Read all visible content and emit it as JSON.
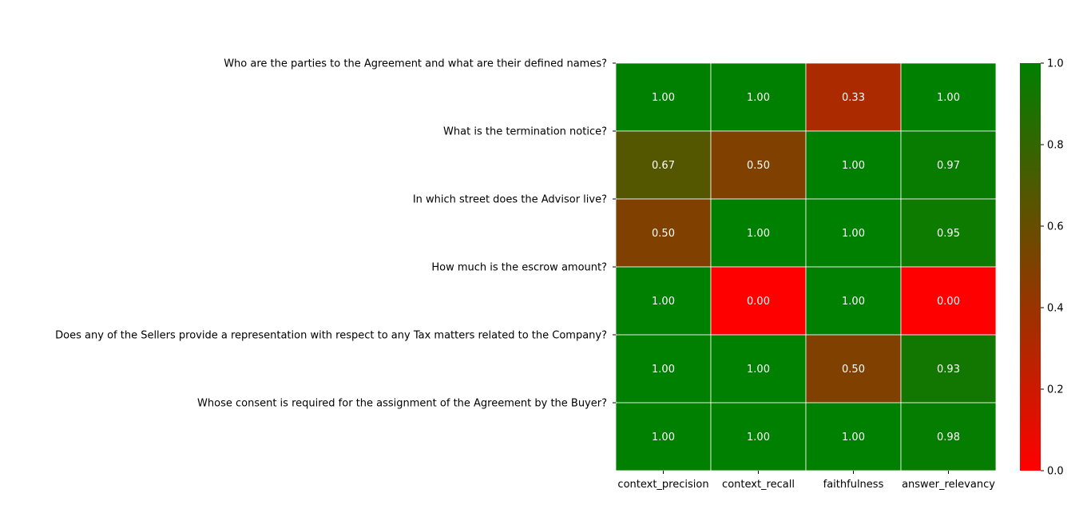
{
  "chart_data": {
    "type": "heatmap",
    "title": "",
    "xlabel": "",
    "ylabel": "",
    "columns": [
      "context_precision",
      "context_recall",
      "faithfulness",
      "answer_relevancy"
    ],
    "rows": [
      "Who are the parties to the Agreement and what are their defined names?",
      "What is the termination notice?",
      "In which street does the Advisor live?",
      "How much is the escrow amount?",
      "Does any of the Sellers provide a representation with respect to any Tax matters related to the Company?",
      "Whose consent is required for the assignment of the Agreement by the Buyer?"
    ],
    "values": [
      [
        1.0,
        1.0,
        0.33,
        1.0
      ],
      [
        0.67,
        0.5,
        1.0,
        0.97
      ],
      [
        0.5,
        1.0,
        1.0,
        0.95
      ],
      [
        1.0,
        0.0,
        1.0,
        0.0
      ],
      [
        1.0,
        1.0,
        0.5,
        0.93
      ],
      [
        1.0,
        1.0,
        1.0,
        0.98
      ]
    ],
    "cell_labels": [
      [
        "1.00",
        "1.00",
        "0.33",
        "1.00"
      ],
      [
        "0.67",
        "0.50",
        "1.00",
        "0.97"
      ],
      [
        "0.50",
        "1.00",
        "1.00",
        "0.95"
      ],
      [
        "1.00",
        "0.00",
        "1.00",
        "0.00"
      ],
      [
        "1.00",
        "1.00",
        "0.50",
        "0.93"
      ],
      [
        "1.00",
        "1.00",
        "1.00",
        "0.98"
      ]
    ],
    "colormap": {
      "low": "#ff0000",
      "high": "#008000",
      "vmin": 0,
      "vmax": 1
    },
    "colorbar_ticks": [
      "0.0",
      "0.2",
      "0.4",
      "0.6",
      "0.8",
      "1.0"
    ],
    "colorbar_tick_values": [
      0,
      0.2,
      0.4,
      0.6,
      0.8,
      1.0
    ],
    "grid": true,
    "annotation_color": "#ffffff"
  }
}
